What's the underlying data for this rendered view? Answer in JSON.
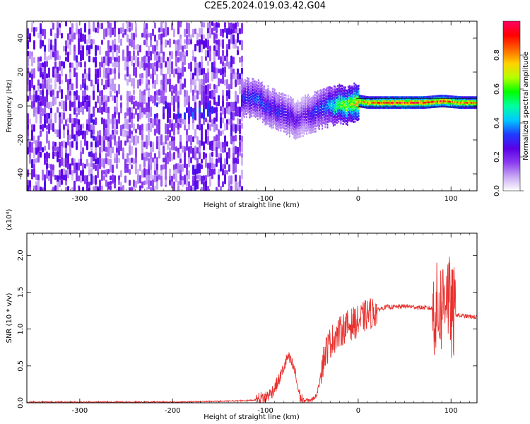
{
  "page": {
    "title": "C2E5.2024.019.03.42.G04"
  },
  "chart_data": [
    {
      "type": "heatmap",
      "xlabel": "Height of straight line (km)",
      "ylabel": "Frequency (Hz)",
      "xlim": [
        -357,
        128
      ],
      "ylim": [
        -50,
        50
      ],
      "xticks": [
        -300,
        -200,
        -100,
        0,
        100
      ],
      "yticks": [
        -40,
        -20,
        0,
        20,
        40
      ],
      "colorbar": {
        "label": "Normalized spectral amplitude",
        "range": [
          0,
          1
        ],
        "ticks": [
          "0.0",
          "0.2",
          "0.4",
          "0.6",
          "0.8"
        ],
        "tick_values": [
          0,
          0.2,
          0.4,
          0.6,
          0.8
        ],
        "colors": [
          "#ffffff",
          "#c8a8f4",
          "#8c3cf0",
          "#5a00e6",
          "#1e3cff",
          "#00c8ff",
          "#00ffa0",
          "#00ff00",
          "#b4ff00",
          "#ffd200",
          "#ff6400",
          "#ff0000",
          "#ff0064"
        ]
      },
      "features": {
        "noise_region_x": [
          -357,
          -125
        ],
        "ridge": {
          "x": [
            -125,
            -110,
            -95,
            -80,
            -70,
            -60,
            -50,
            -40,
            -30,
            -20,
            -10,
            0,
            10,
            30,
            50,
            70,
            90,
            110,
            128
          ],
          "y": [
            5,
            4,
            -1,
            -4,
            -8,
            -6,
            -4,
            -2,
            0,
            1,
            0,
            3,
            2,
            2,
            2,
            2,
            3,
            2,
            2
          ],
          "amp": [
            0.3,
            0.35,
            0.3,
            0.3,
            0.25,
            0.2,
            0.3,
            0.35,
            0.45,
            0.6,
            0.65,
            0.8,
            0.85,
            0.9,
            0.92,
            0.92,
            0.9,
            0.85,
            0.85
          ]
        }
      }
    },
    {
      "type": "line",
      "xlabel": "Height of straight line (km)",
      "ylabel": "SNR (10 * v/v)",
      "scale_label": "(x10⁴)",
      "xlim": [
        -357,
        128
      ],
      "ylim": [
        0,
        2.3
      ],
      "xticks": [
        -300,
        -200,
        -100,
        0,
        100
      ],
      "yticks": [
        "0.0",
        "0.5",
        "1.0",
        "1.5",
        "2.0"
      ],
      "ytick_values": [
        0,
        0.5,
        1.0,
        1.5,
        2.0
      ],
      "series": [
        {
          "color": "#e8322f",
          "x": [
            -357,
            -300,
            -200,
            -150,
            -120,
            -110,
            -100,
            -95,
            -90,
            -85,
            -80,
            -76,
            -72,
            -68,
            -65,
            -62,
            -58,
            -55,
            -50,
            -45,
            -42,
            -40,
            -35,
            -30,
            -25,
            -20,
            -15,
            -10,
            -5,
            0,
            5,
            10,
            15,
            20,
            25,
            30,
            40,
            50,
            60,
            70,
            80,
            85,
            90,
            95,
            100,
            105,
            110,
            120,
            128
          ],
          "y": [
            0.01,
            0.01,
            0.01,
            0.02,
            0.03,
            0.04,
            0.08,
            0.12,
            0.2,
            0.32,
            0.48,
            0.62,
            0.55,
            0.42,
            0.2,
            0.06,
            0.03,
            0.03,
            0.04,
            0.1,
            0.25,
            0.45,
            0.7,
            0.82,
            0.9,
            0.95,
            1.02,
            1.05,
            1.08,
            1.1,
            1.15,
            1.2,
            1.22,
            1.25,
            1.28,
            1.3,
            1.3,
            1.31,
            1.3,
            1.29,
            1.28,
            1.25,
            1.3,
            1.6,
            1.2,
            1.2,
            1.18,
            1.17,
            1.16
          ]
        }
      ]
    }
  ]
}
